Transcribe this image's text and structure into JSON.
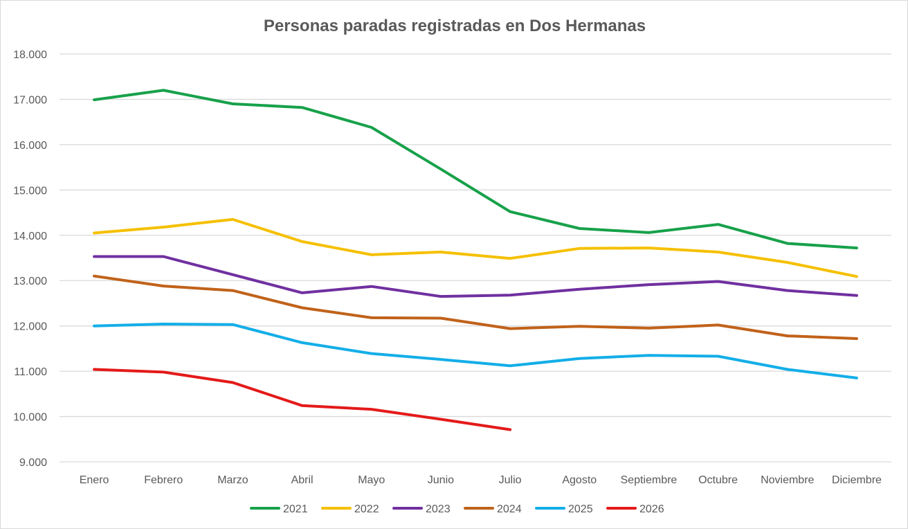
{
  "chart_data": {
    "type": "line",
    "title": "Personas paradas registradas en Dos Hermanas",
    "xlabel": "",
    "ylabel": "",
    "categories": [
      "Enero",
      "Febrero",
      "Marzo",
      "Abril",
      "Mayo",
      "Junio",
      "Julio",
      "Agosto",
      "Septiembre",
      "Octubre",
      "Noviembre",
      "Diciembre"
    ],
    "ylim": [
      9000,
      18000
    ],
    "yticks": [
      9000,
      10000,
      11000,
      12000,
      13000,
      14000,
      15000,
      16000,
      17000,
      18000
    ],
    "ytick_labels": [
      "9.000",
      "10.000",
      "11.000",
      "12.000",
      "13.000",
      "14.000",
      "15.000",
      "16.000",
      "17.000",
      "18.000"
    ],
    "grid": true,
    "legend_position": "bottom",
    "series": [
      {
        "name": "2021",
        "color": "#17a14a",
        "values": [
          16990,
          17200,
          16900,
          16820,
          16380,
          15460,
          14520,
          14150,
          14060,
          14240,
          13820,
          13720
        ]
      },
      {
        "name": "2022",
        "color": "#f5c000",
        "values": [
          14050,
          14180,
          14350,
          13860,
          13570,
          13630,
          13490,
          13710,
          13720,
          13630,
          13400,
          13090
        ]
      },
      {
        "name": "2023",
        "color": "#7030a0",
        "values": [
          13530,
          13530,
          13130,
          12730,
          12870,
          12650,
          12680,
          12810,
          12910,
          12980,
          12780,
          12670
        ]
      },
      {
        "name": "2024",
        "color": "#c0621a",
        "values": [
          13100,
          12880,
          12780,
          12400,
          12180,
          12170,
          11940,
          11990,
          11950,
          12020,
          11780,
          11720
        ]
      },
      {
        "name": "2025",
        "color": "#13aee8",
        "values": [
          12000,
          12040,
          12030,
          11630,
          11390,
          11260,
          11120,
          11280,
          11350,
          11330,
          11040,
          10850
        ]
      },
      {
        "name": "2026",
        "color": "#e41a1a",
        "values": [
          11040,
          10980,
          10750,
          10240,
          10160,
          9940,
          9710,
          null,
          null,
          null,
          null,
          null
        ]
      }
    ]
  }
}
